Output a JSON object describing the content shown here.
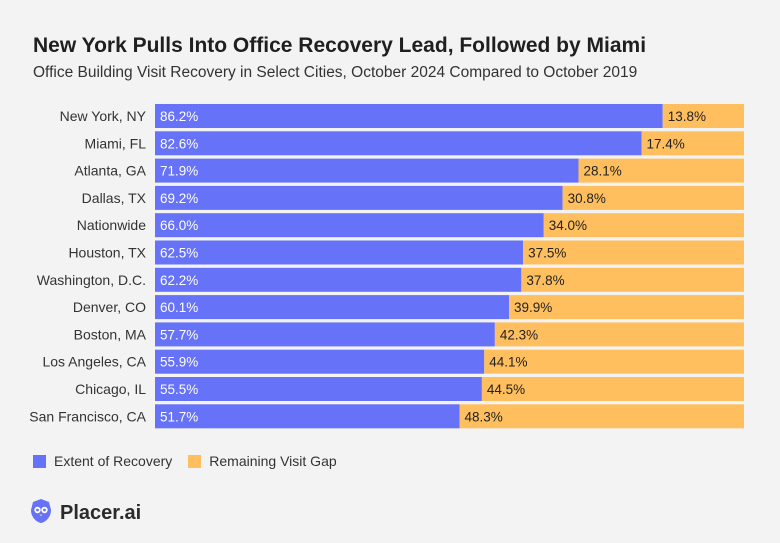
{
  "title": "New York Pulls Into Office Recovery Lead, Followed by Miami",
  "subtitle": "Office Building Visit Recovery in Select Cities, October 2024 Compared to October 2019",
  "brand": {
    "name": "Placer.ai",
    "icon": "owl-logo-icon"
  },
  "colors": {
    "recovery": "#6672f7",
    "gap": "#ffbf5e",
    "background": "#f3f3f3"
  },
  "chart_data": {
    "type": "bar",
    "orientation": "horizontal",
    "stacked": true,
    "title": "New York Pulls Into Office Recovery Lead, Followed by Miami",
    "subtitle": "Office Building Visit Recovery in Select Cities, October 2024 Compared to October 2019",
    "xlabel": "",
    "ylabel": "",
    "xlim": [
      0,
      100
    ],
    "categories": [
      "New York, NY",
      "Miami, FL",
      "Atlanta, GA",
      "Dallas, TX",
      "Nationwide",
      "Houston, TX",
      "Washington, D.C.",
      "Denver, CO",
      "Boston, MA",
      "Los Angeles, CA",
      "Chicago, IL",
      "San Francisco, CA"
    ],
    "series": [
      {
        "name": "Extent of Recovery",
        "values": [
          86.2,
          82.6,
          71.9,
          69.2,
          66.0,
          62.5,
          62.2,
          60.1,
          57.7,
          55.9,
          55.5,
          51.7
        ]
      },
      {
        "name": "Remaining Visit Gap",
        "values": [
          13.8,
          17.4,
          28.1,
          30.8,
          34.0,
          37.5,
          37.8,
          39.9,
          42.3,
          44.1,
          44.5,
          48.3
        ]
      }
    ],
    "data_labels": {
      "recovery": [
        "86.2%",
        "82.6%",
        "71.9%",
        "69.2%",
        "66.0%",
        "62.5%",
        "62.2%",
        "60.1%",
        "57.7%",
        "55.9%",
        "55.5%",
        "51.7%"
      ],
      "gap": [
        "13.8%",
        "17.4%",
        "28.1%",
        "30.8%",
        "34.0%",
        "37.5%",
        "37.8%",
        "39.9%",
        "42.3%",
        "44.1%",
        "44.5%",
        "48.3%"
      ]
    },
    "legend": {
      "placement": "bottom-left",
      "items": [
        "Extent of Recovery",
        "Remaining Visit Gap"
      ]
    },
    "grid": false
  }
}
